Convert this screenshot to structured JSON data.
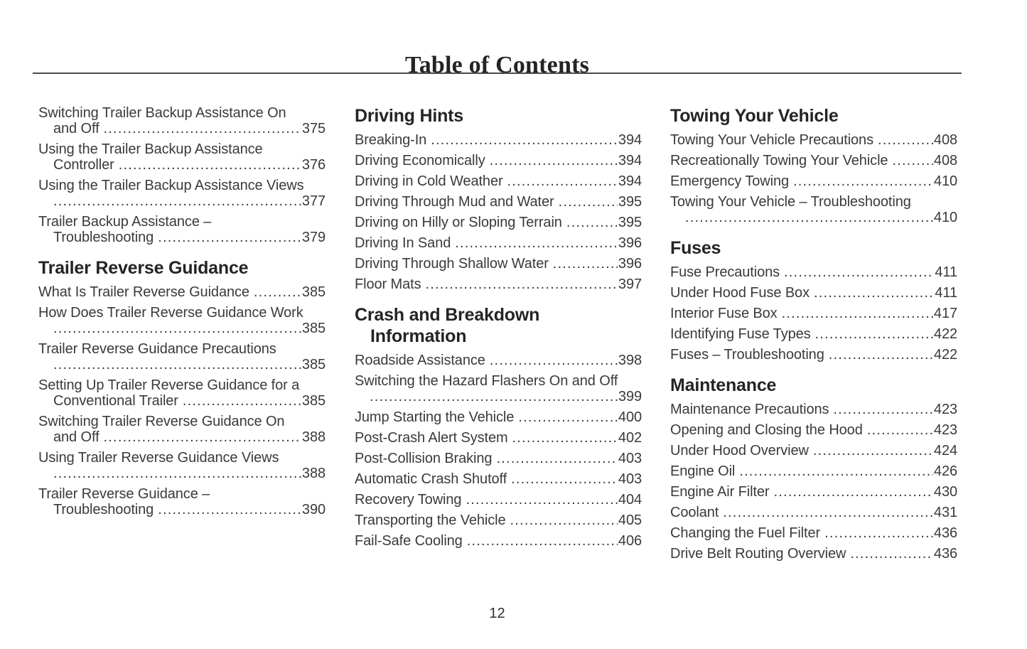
{
  "page": {
    "title": "Table of Contents",
    "page_number": "12"
  },
  "colors": {
    "text": "#3a3a3a",
    "heading": "#242424",
    "rule": "#4a4a4a"
  },
  "columns": [
    {
      "items": [
        {
          "type": "entry",
          "line1": "Switching Trailer Backup Assistance On",
          "line2": "and Off",
          "page": "375"
        },
        {
          "type": "entry",
          "line1": "Using the Trailer Backup Assistance",
          "line2": "Controller",
          "page": "376"
        },
        {
          "type": "entry",
          "line1": "Using the Trailer Backup Assistance Views",
          "line2": "",
          "page": "377"
        },
        {
          "type": "entry",
          "line1": "Trailer Backup Assistance –",
          "line2": "Troubleshooting",
          "page": "379"
        },
        {
          "type": "heading",
          "line1": "Trailer Reverse Guidance"
        },
        {
          "type": "entry",
          "line1": "What Is Trailer Reverse Guidance",
          "page": "385"
        },
        {
          "type": "entry",
          "line1": "How Does Trailer Reverse Guidance Work",
          "line2": "",
          "page": "385"
        },
        {
          "type": "entry",
          "line1": "Trailer Reverse Guidance Precautions",
          "line2": "",
          "page": "385"
        },
        {
          "type": "entry",
          "line1": "Setting Up Trailer Reverse Guidance for a",
          "line2": "Conventional Trailer",
          "page": "385"
        },
        {
          "type": "entry",
          "line1": "Switching Trailer Reverse Guidance On",
          "line2": "and Off",
          "page": "388"
        },
        {
          "type": "entry",
          "line1": "Using Trailer Reverse Guidance Views",
          "line2": "",
          "page": "388"
        },
        {
          "type": "entry",
          "line1": "Trailer Reverse Guidance –",
          "line2": "Troubleshooting",
          "page": "390"
        }
      ]
    },
    {
      "items": [
        {
          "type": "heading",
          "line1": "Driving Hints"
        },
        {
          "type": "entry",
          "line1": "Breaking-In",
          "page": "394"
        },
        {
          "type": "entry",
          "line1": "Driving Economically",
          "page": "394"
        },
        {
          "type": "entry",
          "line1": "Driving in Cold Weather",
          "page": "394"
        },
        {
          "type": "entry",
          "line1": "Driving Through Mud and Water",
          "page": "395"
        },
        {
          "type": "entry",
          "line1": "Driving on Hilly or Sloping Terrain",
          "page": "395"
        },
        {
          "type": "entry",
          "line1": "Driving In Sand",
          "page": "396"
        },
        {
          "type": "entry",
          "line1": "Driving Through Shallow Water",
          "page": "396"
        },
        {
          "type": "entry",
          "line1": "Floor Mats",
          "page": "397"
        },
        {
          "type": "heading",
          "line1": "Crash and Breakdown",
          "line2": "Information"
        },
        {
          "type": "entry",
          "line1": "Roadside Assistance",
          "page": "398"
        },
        {
          "type": "entry",
          "line1": "Switching the Hazard Flashers On and Off",
          "line2": "",
          "page": "399"
        },
        {
          "type": "entry",
          "line1": "Jump Starting the Vehicle",
          "page": "400"
        },
        {
          "type": "entry",
          "line1": "Post-Crash Alert System",
          "page": "402"
        },
        {
          "type": "entry",
          "line1": "Post-Collision Braking",
          "page": "403"
        },
        {
          "type": "entry",
          "line1": "Automatic Crash Shutoff",
          "page": "403"
        },
        {
          "type": "entry",
          "line1": "Recovery Towing",
          "page": "404"
        },
        {
          "type": "entry",
          "line1": "Transporting the Vehicle",
          "page": "405"
        },
        {
          "type": "entry",
          "line1": "Fail-Safe Cooling",
          "page": "406"
        }
      ]
    },
    {
      "items": [
        {
          "type": "heading",
          "line1": "Towing Your Vehicle"
        },
        {
          "type": "entry",
          "line1": "Towing Your Vehicle Precautions",
          "page": "408"
        },
        {
          "type": "entry",
          "line1": "Recreationally Towing Your Vehicle",
          "page": "408"
        },
        {
          "type": "entry",
          "line1": "Emergency Towing",
          "page": "410"
        },
        {
          "type": "entry",
          "line1": "Towing Your Vehicle – Troubleshooting",
          "line2": "",
          "page": "410"
        },
        {
          "type": "heading",
          "line1": "Fuses"
        },
        {
          "type": "entry",
          "line1": "Fuse Precautions",
          "page": "411"
        },
        {
          "type": "entry",
          "line1": "Under Hood Fuse Box",
          "page": "411"
        },
        {
          "type": "entry",
          "line1": "Interior Fuse Box",
          "page": "417"
        },
        {
          "type": "entry",
          "line1": "Identifying Fuse Types",
          "page": "422"
        },
        {
          "type": "entry",
          "line1": "Fuses – Troubleshooting",
          "page": "422"
        },
        {
          "type": "heading",
          "line1": "Maintenance"
        },
        {
          "type": "entry",
          "line1": "Maintenance Precautions",
          "page": "423"
        },
        {
          "type": "entry",
          "line1": "Opening and Closing the Hood",
          "page": "423"
        },
        {
          "type": "entry",
          "line1": "Under Hood Overview",
          "page": "424"
        },
        {
          "type": "entry",
          "line1": "Engine Oil",
          "page": "426"
        },
        {
          "type": "entry",
          "line1": "Engine Air Filter",
          "page": "430"
        },
        {
          "type": "entry",
          "line1": "Coolant",
          "page": "431"
        },
        {
          "type": "entry",
          "line1": "Changing the Fuel Filter",
          "page": "436"
        },
        {
          "type": "entry",
          "line1": "Drive Belt Routing Overview",
          "page": "436"
        }
      ]
    }
  ]
}
